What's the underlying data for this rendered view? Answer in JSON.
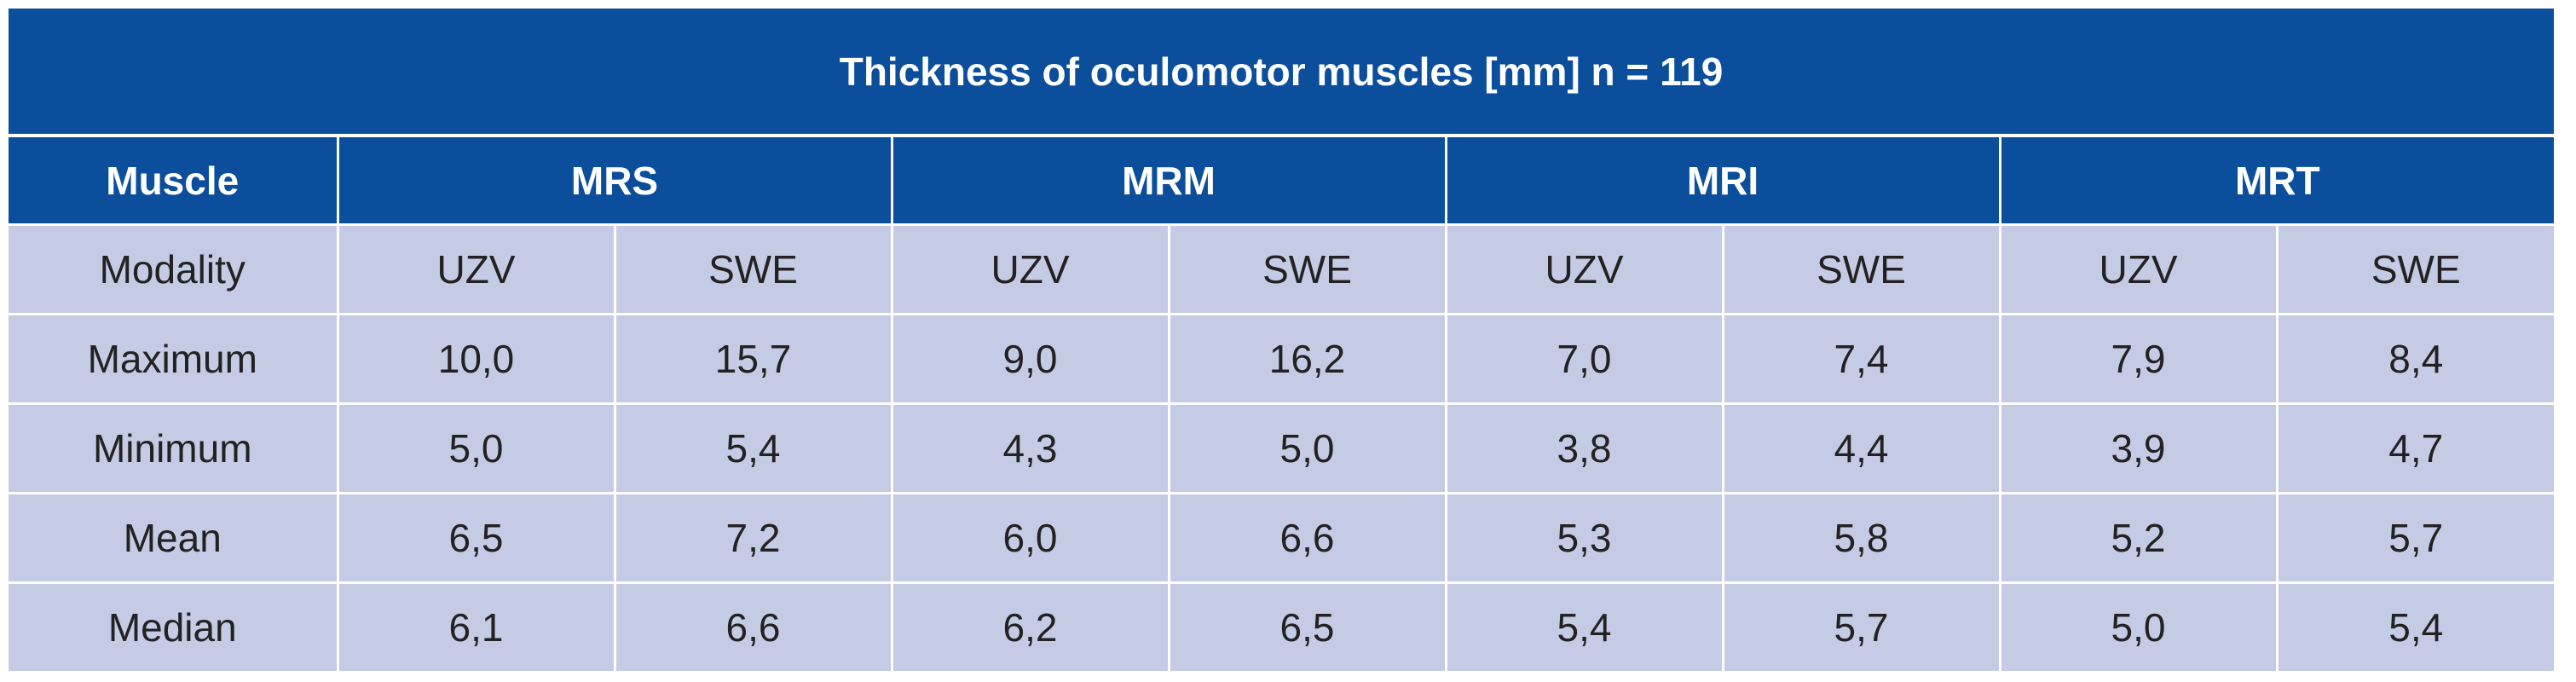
{
  "table": {
    "title": "Thickness of oculomotor muscles [mm] n = 119",
    "header_label": "Muscle",
    "muscles": [
      "MRS",
      "MRM",
      "MRI",
      "MRT"
    ],
    "rows": [
      {
        "label": "Modality",
        "values": [
          "UZV",
          "SWE",
          "UZV",
          "SWE",
          "UZV",
          "SWE",
          "UZV",
          "SWE"
        ]
      },
      {
        "label": "Maximum",
        "values": [
          "10,0",
          "15,7",
          "9,0",
          "16,2",
          "7,0",
          "7,4",
          "7,9",
          "8,4"
        ]
      },
      {
        "label": "Minimum",
        "values": [
          "5,0",
          "5,4",
          "4,3",
          "5,0",
          "3,8",
          "4,4",
          "3,9",
          "4,7"
        ]
      },
      {
        "label": "Mean",
        "values": [
          "6,5",
          "7,2",
          "6,0",
          "6,6",
          "5,3",
          "5,8",
          "5,2",
          "5,7"
        ]
      },
      {
        "label": "Median",
        "values": [
          "6,1",
          "6,6",
          "6,2",
          "6,5",
          "5,4",
          "5,7",
          "5,0",
          "5,4"
        ]
      }
    ]
  },
  "colors": {
    "header_bg": "#0b4f9c",
    "body_bg": "#c5cbe5",
    "header_text": "#ffffff",
    "body_text": "#222222"
  }
}
